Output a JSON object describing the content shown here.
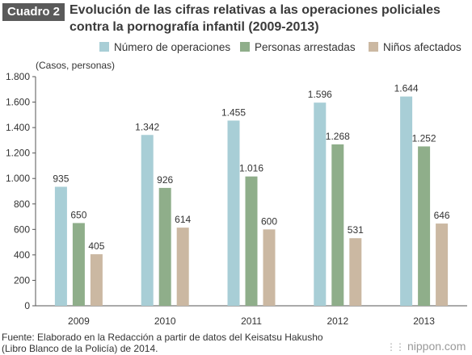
{
  "header": {
    "badge": "Cuadro 2",
    "title_line1": "Evolución de las cifras relativas a las operaciones policiales",
    "title_line2": "contra la pornografía infantil (2009-2013)"
  },
  "unit_label": "(Casos, personas)",
  "footer": {
    "source_line1": "Fuente: Elaborado en la Redacción a partir de datos del Keisatsu Hakusho",
    "source_line2": "(Libro Blanco de la Policía) de 2014.",
    "brand": "nippon.com"
  },
  "chart_data": {
    "type": "bar",
    "title": "Evolución de las cifras relativas a las operaciones policiales contra la pornografía infantil (2009-2013)",
    "xlabel": "",
    "ylabel": "(Casos, personas)",
    "categories": [
      "2009",
      "2010",
      "2011",
      "2012",
      "2013"
    ],
    "ylim": [
      0,
      1800
    ],
    "yticks": [
      0,
      200,
      400,
      600,
      800,
      1000,
      1200,
      1400,
      1600,
      1800
    ],
    "ytick_labels": [
      "0",
      "200",
      "400",
      "600",
      "800",
      "1.000",
      "1.200",
      "1.400",
      "1.600",
      "1.800"
    ],
    "grid": false,
    "legend_position": "top",
    "series": [
      {
        "name": "Número de operaciones",
        "color": "#a8ced6",
        "values": [
          935,
          1342,
          1455,
          1596,
          1644
        ],
        "labels": [
          "935",
          "1.342",
          "1.455",
          "1.596",
          "1.644"
        ]
      },
      {
        "name": "Personas arrestadas",
        "color": "#8fae8a",
        "values": [
          650,
          926,
          1016,
          1268,
          1252
        ],
        "labels": [
          "650",
          "926",
          "1.016",
          "1.268",
          "1.252"
        ]
      },
      {
        "name": "Niños afectados",
        "color": "#cbb8a2",
        "values": [
          405,
          614,
          600,
          531,
          646
        ],
        "labels": [
          "405",
          "614",
          "600",
          "531",
          "646"
        ]
      }
    ]
  }
}
